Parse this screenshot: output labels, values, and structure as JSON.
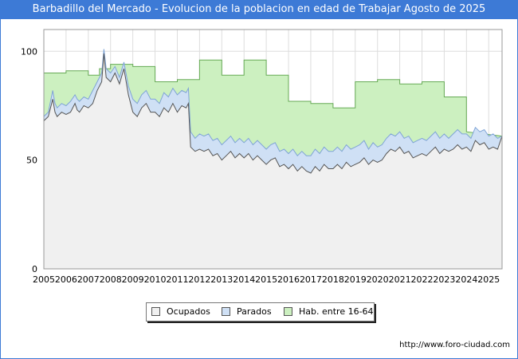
{
  "header": {
    "title": "Barbadillo del Mercado - Evolucion de la poblacion en edad de Trabajar Agosto de 2025"
  },
  "footer": {
    "url": "http://www.foro-ciudad.com"
  },
  "colors": {
    "title_bar": "#3d7ad6",
    "ocupados": "#f0f0f0",
    "parados": "#cfe0f5",
    "hab": "#ccf0c0"
  },
  "chart_data": {
    "type": "area",
    "title": "Barbadillo del Mercado - Evolucion de la poblacion en edad de Trabajar Agosto de 2025",
    "xlabel": "",
    "ylabel": "",
    "xlim": [
      2005,
      2025.6
    ],
    "ylim": [
      0,
      110
    ],
    "yticks": [
      0,
      50,
      100
    ],
    "xticks": [
      2005,
      2006,
      2007,
      2008,
      2009,
      2010,
      2011,
      2012,
      2013,
      2014,
      2015,
      2016,
      2017,
      2018,
      2019,
      2020,
      2021,
      2022,
      2023,
      2024,
      2025
    ],
    "grid": true,
    "legend_position": "bottom",
    "series": [
      {
        "name": "Hab. entre 16-64",
        "x": [
          2005,
          2006,
          2006,
          2007,
          2007,
          2007.5,
          2007.5,
          2008,
          2008,
          2009,
          2009,
          2010,
          2010,
          2011,
          2011,
          2012,
          2012,
          2013,
          2013,
          2014,
          2014,
          2015,
          2015,
          2016,
          2016,
          2017,
          2017,
          2018,
          2018,
          2019,
          2019,
          2020,
          2020,
          2021,
          2021,
          2022,
          2022,
          2023,
          2023,
          2024,
          2024,
          2025.6
        ],
        "values": [
          90,
          90,
          91,
          91,
          89,
          89,
          92,
          92,
          94,
          94,
          93,
          93,
          86,
          86,
          87,
          87,
          96,
          96,
          89,
          89,
          96,
          96,
          89,
          89,
          77,
          77,
          76,
          76,
          74,
          74,
          86,
          86,
          87,
          87,
          85,
          85,
          86,
          86,
          79,
          79,
          63,
          61
        ]
      },
      {
        "name": "Parados",
        "x": [
          2005,
          2005.2,
          2005.4,
          2005.5,
          2005.6,
          2005.8,
          2006,
          2006.2,
          2006.4,
          2006.5,
          2006.6,
          2006.8,
          2007,
          2007.2,
          2007.4,
          2007.6,
          2007.7,
          2007.8,
          2008,
          2008.2,
          2008.4,
          2008.6,
          2008.8,
          2009,
          2009.2,
          2009.4,
          2009.6,
          2009.8,
          2010,
          2010.2,
          2010.4,
          2010.6,
          2010.8,
          2011,
          2011.2,
          2011.4,
          2011.5,
          2011.6,
          2011.8,
          2012,
          2012.2,
          2012.4,
          2012.6,
          2012.8,
          2013,
          2013.2,
          2013.4,
          2013.6,
          2013.8,
          2014,
          2014.2,
          2014.4,
          2014.6,
          2014.8,
          2015,
          2015.2,
          2015.4,
          2015.6,
          2015.8,
          2016,
          2016.2,
          2016.4,
          2016.6,
          2016.8,
          2017,
          2017.2,
          2017.4,
          2017.6,
          2017.8,
          2018,
          2018.2,
          2018.4,
          2018.6,
          2018.8,
          2019,
          2019.2,
          2019.4,
          2019.6,
          2019.8,
          2020,
          2020.2,
          2020.4,
          2020.6,
          2020.8,
          2021,
          2021.2,
          2021.4,
          2021.6,
          2021.8,
          2022,
          2022.2,
          2022.4,
          2022.6,
          2022.8,
          2023,
          2023.2,
          2023.4,
          2023.6,
          2023.8,
          2024,
          2024.2,
          2024.4,
          2024.6,
          2024.8,
          2025,
          2025.2,
          2025.4,
          2025.6
        ],
        "values": [
          70,
          72,
          82,
          76,
          74,
          76,
          75,
          77,
          80,
          78,
          77,
          79,
          78,
          82,
          86,
          90,
          101,
          92,
          90,
          93,
          88,
          95,
          84,
          78,
          76,
          80,
          82,
          78,
          78,
          76,
          81,
          79,
          83,
          80,
          82,
          81,
          83,
          63,
          60,
          62,
          61,
          62,
          59,
          60,
          57,
          59,
          61,
          58,
          60,
          58,
          60,
          57,
          59,
          57,
          55,
          57,
          58,
          54,
          55,
          53,
          55,
          52,
          54,
          52,
          52,
          55,
          53,
          56,
          54,
          54,
          56,
          54,
          57,
          55,
          56,
          57,
          59,
          55,
          58,
          56,
          57,
          60,
          62,
          61,
          63,
          60,
          61,
          58,
          59,
          60,
          59,
          61,
          63,
          60,
          62,
          60,
          62,
          64,
          62,
          62,
          60,
          65,
          63,
          64,
          61,
          62,
          60,
          61
        ]
      },
      {
        "name": "Ocupados",
        "x": [
          2005,
          2005.2,
          2005.4,
          2005.5,
          2005.6,
          2005.8,
          2006,
          2006.2,
          2006.4,
          2006.5,
          2006.6,
          2006.8,
          2007,
          2007.2,
          2007.4,
          2007.6,
          2007.7,
          2007.8,
          2008,
          2008.2,
          2008.4,
          2008.6,
          2008.8,
          2009,
          2009.2,
          2009.4,
          2009.6,
          2009.8,
          2010,
          2010.2,
          2010.4,
          2010.6,
          2010.8,
          2011,
          2011.2,
          2011.4,
          2011.5,
          2011.6,
          2011.8,
          2012,
          2012.2,
          2012.4,
          2012.6,
          2012.8,
          2013,
          2013.2,
          2013.4,
          2013.6,
          2013.8,
          2014,
          2014.2,
          2014.4,
          2014.6,
          2014.8,
          2015,
          2015.2,
          2015.4,
          2015.6,
          2015.8,
          2016,
          2016.2,
          2016.4,
          2016.6,
          2016.8,
          2017,
          2017.2,
          2017.4,
          2017.6,
          2017.8,
          2018,
          2018.2,
          2018.4,
          2018.6,
          2018.8,
          2019,
          2019.2,
          2019.4,
          2019.6,
          2019.8,
          2020,
          2020.2,
          2020.4,
          2020.6,
          2020.8,
          2021,
          2021.2,
          2021.4,
          2021.6,
          2021.8,
          2022,
          2022.2,
          2022.4,
          2022.6,
          2022.8,
          2023,
          2023.2,
          2023.4,
          2023.6,
          2023.8,
          2024,
          2024.2,
          2024.4,
          2024.6,
          2024.8,
          2025,
          2025.2,
          2025.4,
          2025.6
        ],
        "values": [
          68,
          70,
          78,
          72,
          70,
          72,
          71,
          72,
          76,
          73,
          72,
          75,
          74,
          76,
          82,
          86,
          99,
          88,
          86,
          90,
          85,
          92,
          80,
          72,
          70,
          74,
          76,
          72,
          72,
          70,
          74,
          72,
          76,
          72,
          75,
          74,
          76,
          56,
          54,
          55,
          54,
          55,
          52,
          53,
          50,
          52,
          54,
          51,
          53,
          51,
          53,
          50,
          52,
          50,
          48,
          50,
          51,
          47,
          48,
          46,
          48,
          45,
          47,
          45,
          44,
          47,
          45,
          48,
          46,
          46,
          48,
          46,
          49,
          47,
          48,
          49,
          51,
          48,
          50,
          49,
          50,
          53,
          55,
          54,
          56,
          53,
          54,
          51,
          52,
          53,
          52,
          54,
          56,
          53,
          55,
          54,
          55,
          57,
          55,
          56,
          54,
          59,
          57,
          58,
          55,
          56,
          55,
          61
        ]
      }
    ],
    "legend": [
      "Ocupados",
      "Parados",
      "Hab. entre 16-64"
    ],
    "watermark": "FORO-CIUDAD.COM"
  }
}
